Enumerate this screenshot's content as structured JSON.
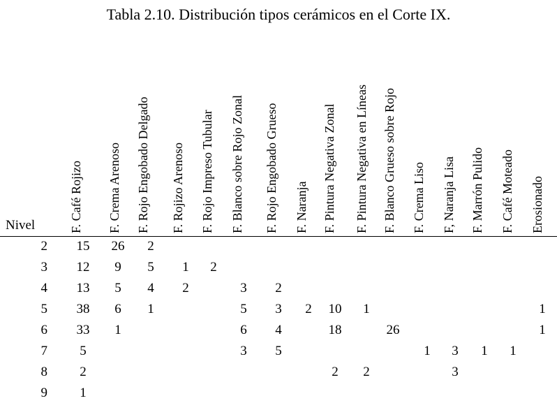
{
  "title": "Tabla 2.10. Distribución tipos cerámicos en el Corte IX.",
  "level_header": "Nivel",
  "columns": [
    "F. Café Rojizo",
    "F. Crema Arenoso",
    "F. Rojo Engobado Delgado",
    "F. Rojizo Arenoso",
    "F. Rojo Impreso Tubular",
    "F. Blanco sobre Rojo Zonal",
    "F. Rojo Engobado Grueso",
    "F. Naranja",
    "F. Pintura Negativa Zonal",
    "F. Pintura Negativa en Líneas",
    "F. Blanco Grueso sobre Rojo",
    "F. Crema Liso",
    "F, Naranja Lisa",
    "F. Marrón Pulido",
    "F. Café Moteado",
    "Erosionado"
  ],
  "rows": [
    {
      "nivel": "2",
      "values": [
        "15",
        "26",
        "2",
        "",
        "",
        "",
        "",
        "",
        "",
        "",
        "",
        "",
        "",
        "",
        "",
        ""
      ]
    },
    {
      "nivel": "3",
      "values": [
        "12",
        "9",
        "5",
        "1",
        "2",
        "",
        "",
        "",
        "",
        "",
        "",
        "",
        "",
        "",
        "",
        ""
      ]
    },
    {
      "nivel": "4",
      "values": [
        "13",
        "5",
        "4",
        "2",
        "",
        "3",
        "2",
        "",
        "",
        "",
        "",
        "",
        "",
        "",
        "",
        ""
      ]
    },
    {
      "nivel": "5",
      "values": [
        "38",
        "6",
        "1",
        "",
        "",
        "5",
        "3",
        "2",
        "10",
        "1",
        "",
        "",
        "",
        "",
        "",
        "1"
      ]
    },
    {
      "nivel": "6",
      "values": [
        "33",
        "1",
        "",
        "",
        "",
        "6",
        "4",
        "",
        "18",
        "",
        "26",
        "",
        "",
        "",
        "",
        "1"
      ]
    },
    {
      "nivel": "7",
      "values": [
        "5",
        "",
        "",
        "",
        "",
        "3",
        "5",
        "",
        "",
        "",
        "",
        "1",
        "3",
        "1",
        "1",
        ""
      ]
    },
    {
      "nivel": "8",
      "values": [
        "2",
        "",
        "",
        "",
        "",
        "",
        "",
        "",
        "2",
        "2",
        "",
        "",
        "3",
        "",
        "",
        ""
      ]
    },
    {
      "nivel": "9",
      "values": [
        "1",
        "",
        "",
        "",
        "",
        "",
        "",
        "",
        "",
        "",
        "",
        "",
        "",
        "",
        "",
        ""
      ]
    }
  ]
}
